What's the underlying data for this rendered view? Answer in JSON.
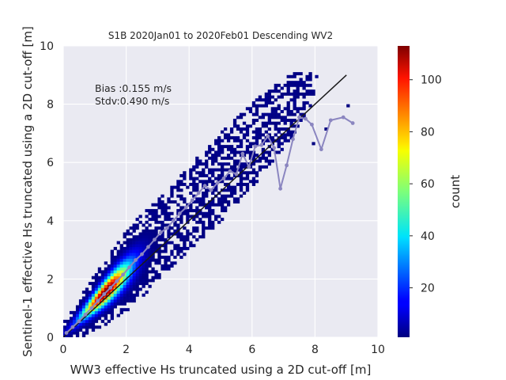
{
  "chart_data": {
    "type": "heatmap",
    "title": "S1B 2020Jan01 to 2020Feb01 Descending WV2",
    "xlabel": "WW3 effective Hs truncated using a 2D cut-off [m]",
    "ylabel": "Sentinel-1 effective Hs truncated using a 2D cut-off [m]",
    "xlim": [
      0,
      10
    ],
    "ylim": [
      0,
      10
    ],
    "xticks": [
      "0",
      "2",
      "4",
      "6",
      "8",
      "10"
    ],
    "yticks": [
      "0",
      "2",
      "4",
      "6",
      "8",
      "10"
    ],
    "grid": true,
    "annotations": [
      "Bias :0.155 m/s",
      "Stdv:0.490 m/s"
    ],
    "colorbar": {
      "label": "count",
      "range": [
        1,
        113
      ],
      "ticks": [
        "20",
        "40",
        "60",
        "80",
        "100"
      ],
      "colormap": "jet"
    },
    "identity_line": {
      "x": [
        0,
        9
      ],
      "y": [
        0,
        9
      ],
      "color": "#1a1a1a"
    },
    "binned_mean_line": {
      "color": "#8b86c0",
      "x": [
        0.1,
        0.3,
        0.5,
        0.7,
        0.9,
        1.1,
        1.3,
        1.5,
        1.7,
        1.9,
        2.1,
        2.3,
        2.5,
        2.7,
        2.9,
        3.1,
        3.3,
        3.5,
        3.7,
        3.9,
        4.1,
        4.3,
        4.5,
        4.7,
        4.9,
        5.1,
        5.3,
        5.5,
        5.7,
        5.9,
        6.1,
        6.3,
        6.5,
        6.7,
        6.9,
        7.1,
        7.3,
        7.5,
        7.7,
        7.9,
        8.2,
        8.5,
        8.9,
        9.2
      ],
      "y": [
        0.15,
        0.35,
        0.55,
        0.78,
        1.0,
        1.25,
        1.48,
        1.7,
        1.92,
        2.15,
        2.4,
        2.65,
        2.85,
        3.1,
        3.35,
        3.6,
        3.75,
        4.0,
        4.25,
        4.45,
        4.7,
        4.95,
        5.2,
        5.05,
        5.3,
        5.45,
        5.7,
        5.6,
        6.3,
        5.85,
        6.55,
        6.6,
        6.9,
        6.5,
        5.1,
        5.9,
        6.8,
        7.55,
        7.5,
        7.3,
        6.45,
        7.45,
        7.55,
        7.35
      ]
    }
  }
}
